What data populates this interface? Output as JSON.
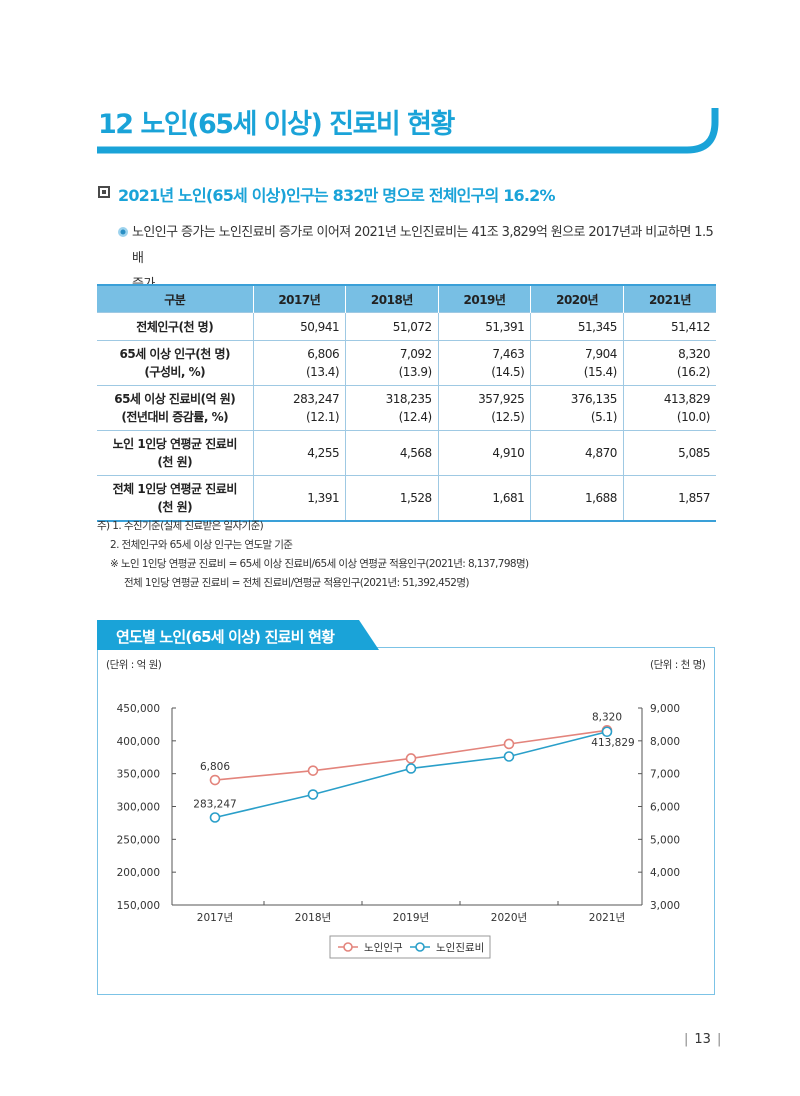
{
  "title": "12 노인(65세 이상) 진료비 현황",
  "subheading": "2021년 노인(65세 이상)인구는 832만 명으로 전체인구의 16.2%",
  "bullet": {
    "line1": "노인인구 증가는 노인진료비 증가로 이어져 2021년 노인진료비는 41조 3,829억 원으로 2017년과 비교하면 1.5배",
    "line2": "증가"
  },
  "table": {
    "headers": [
      "구분",
      "2017년",
      "2018년",
      "2019년",
      "2020년",
      "2021년"
    ],
    "rows": [
      {
        "label1": "전체인구(천 명)",
        "label2": "",
        "values": [
          "50,941",
          "51,072",
          "51,391",
          "51,345",
          "51,412"
        ],
        "subs": [
          "",
          "",
          "",
          "",
          ""
        ]
      },
      {
        "label1": "65세 이상 인구(천 명)",
        "label2": "(구성비, %)",
        "values": [
          "6,806",
          "7,092",
          "7,463",
          "7,904",
          "8,320"
        ],
        "subs": [
          "(13.4)",
          "(13.9)",
          "(14.5)",
          "(15.4)",
          "(16.2)"
        ]
      },
      {
        "label1": "65세 이상 진료비(억  원)",
        "label2": "(전년대비 증감률, %)",
        "values": [
          "283,247",
          "318,235",
          "357,925",
          "376,135",
          "413,829"
        ],
        "subs": [
          "(12.1)",
          "(12.4)",
          "(12.5)",
          "(5.1)",
          "(10.0)"
        ]
      },
      {
        "label1": "노인 1인당 연평균 진료비",
        "label2": "(천 원)",
        "values": [
          "4,255",
          "4,568",
          "4,910",
          "4,870",
          "5,085"
        ],
        "subs": [
          "",
          "",
          "",
          "",
          ""
        ]
      },
      {
        "label1": "전체 1인당 연평균 진료비",
        "label2": "(천 원)",
        "values": [
          "1,391",
          "1,528",
          "1,681",
          "1,688",
          "1,857"
        ],
        "subs": [
          "",
          "",
          "",
          "",
          ""
        ]
      }
    ]
  },
  "notes": {
    "n1": "주) 1. 수진기준(실제 진료받은 일자기준)",
    "n2": "2. 전체인구와 65세 이상 인구는 연도말 기준",
    "n3": "※ 노인 1인당 연평균 진료비 = 65세 이상 진료비/65세 이상 연평균 적용인구(2021년: 8,137,798명)",
    "n4": "전체 1인당 연평균 진료비 = 전체 진료비/연평균 적용인구(2021년: 51,392,452명)"
  },
  "chart_section": {
    "tab_label": "연도별 노인(65세 이상) 진료비 현황",
    "unit_left": "(단위 : 억 원)",
    "unit_right": "(단위 : 천 명)"
  },
  "chart_data": {
    "type": "line",
    "title": "연도별 노인(65세 이상) 진료비 현황",
    "categories": [
      "2017년",
      "2018년",
      "2019년",
      "2020년",
      "2021년"
    ],
    "y_left": {
      "min": 150000,
      "max": 450000,
      "ticks": [
        150000,
        200000,
        250000,
        300000,
        350000,
        400000,
        450000
      ],
      "tick_labels": [
        "150,000",
        "200,000",
        "250,000",
        "300,000",
        "350,000",
        "400,000",
        "450,000"
      ]
    },
    "y_right": {
      "min": 3000,
      "max": 9000,
      "ticks": [
        3000,
        4000,
        5000,
        6000,
        7000,
        8000,
        9000
      ],
      "tick_labels": [
        "3,000",
        "4,000",
        "5,000",
        "6,000",
        "7,000",
        "8,000",
        "9,000"
      ]
    },
    "series": [
      {
        "name": "노인인구",
        "axis": "right",
        "color": "#e3847c",
        "values": [
          6806,
          7092,
          7463,
          7904,
          8320
        ],
        "data_labels": [
          "6,806",
          "",
          "",
          "",
          "8,320"
        ]
      },
      {
        "name": "노인진료비",
        "axis": "left",
        "color": "#2a9fc9",
        "values": [
          283247,
          318235,
          357925,
          376135,
          413829
        ],
        "data_labels": [
          "283,247",
          "",
          "",
          "",
          "413,829"
        ]
      }
    ],
    "legend": "bottom-center",
    "grid": false
  },
  "page_number": "13",
  "colors": {
    "accent": "#1aa3d8",
    "table_header": "#78bfe4",
    "tab": "#1aa3d8"
  }
}
